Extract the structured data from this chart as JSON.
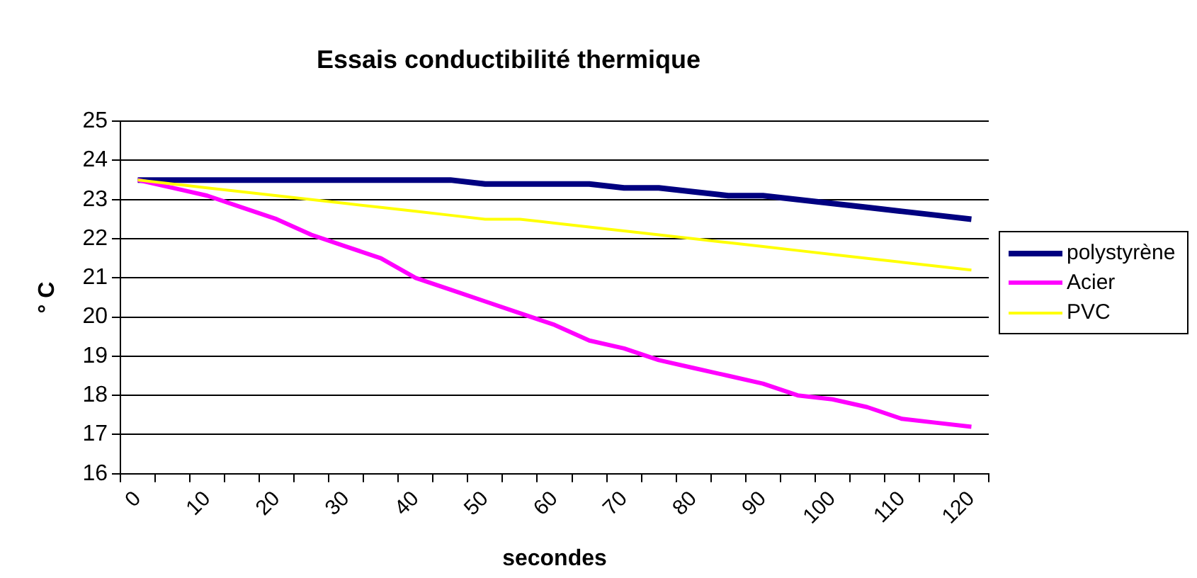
{
  "chart_data": {
    "type": "line",
    "title": "Essais conductibilité thermique",
    "xlabel": "secondes",
    "ylabel": "° C",
    "categories": [
      "0",
      null,
      "10",
      null,
      "20",
      null,
      "30",
      null,
      "40",
      null,
      "50",
      null,
      "60",
      null,
      "70",
      null,
      "80",
      null,
      "90",
      null,
      "100",
      null,
      "110",
      null,
      "120"
    ],
    "ylim": [
      16,
      25
    ],
    "yticks": [
      16,
      17,
      18,
      19,
      20,
      21,
      22,
      23,
      24,
      25
    ],
    "grid": "y",
    "legend": "right",
    "marker": "none",
    "line_style": "solid",
    "series": [
      {
        "name": "polystyrène",
        "color": "#000080",
        "values": [
          23.5,
          23.5,
          23.5,
          23.5,
          23.5,
          23.5,
          23.5,
          23.5,
          23.5,
          23.5,
          23.4,
          23.4,
          23.4,
          23.4,
          23.3,
          23.3,
          23.2,
          23.1,
          23.1,
          23.0,
          22.9,
          22.8,
          22.7,
          22.6,
          22.5
        ]
      },
      {
        "name": "Acier",
        "color": "#ff00ff",
        "values": [
          23.5,
          23.3,
          23.1,
          22.8,
          22.5,
          22.1,
          21.8,
          21.5,
          21.0,
          20.7,
          20.4,
          20.1,
          19.8,
          19.4,
          19.2,
          18.9,
          18.7,
          18.5,
          18.3,
          18.0,
          17.9,
          17.7,
          17.4,
          17.3,
          17.2
        ]
      },
      {
        "name": "PVC",
        "color": "#ffff00",
        "values": [
          23.5,
          23.4,
          23.3,
          23.2,
          23.1,
          23.0,
          22.9,
          22.8,
          22.7,
          22.6,
          22.5,
          22.5,
          22.4,
          22.3,
          22.2,
          22.1,
          22.0,
          21.9,
          21.8,
          21.7,
          21.6,
          21.5,
          21.4,
          21.3,
          21.2
        ]
      }
    ]
  }
}
